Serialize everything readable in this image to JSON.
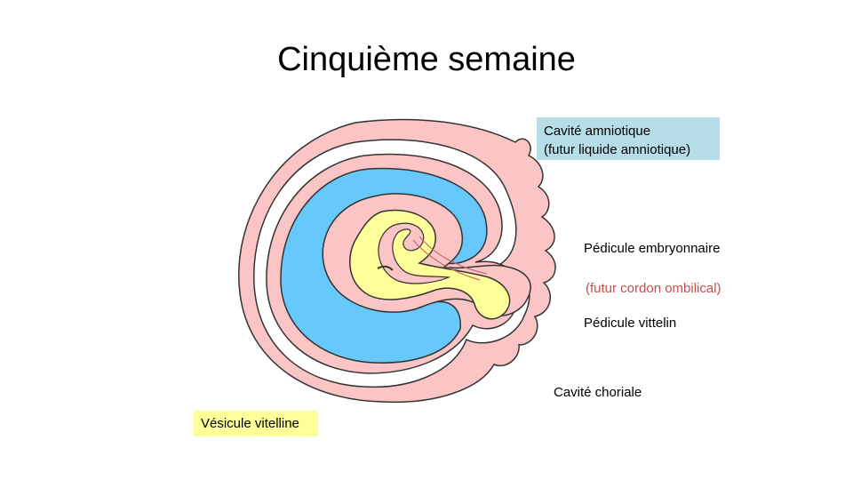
{
  "slide": {
    "title": "Cinquième semaine"
  },
  "labels": {
    "amniotic_line1": "Cavité amniotique",
    "amniotic_line2": "(futur liquide amniotique)",
    "embryonic_stalk": "Pédicule embryonnaire",
    "umbilical_cord": "(futur cordon ombilical)",
    "vitelline_stalk": "Pédicule vittelin",
    "chorionic_cavity": "Cavité choriale",
    "yolk_sac": "Vésicule vitelline"
  },
  "colors": {
    "amniotic_box": "#b7dde8",
    "yolk_box": "#ffff99",
    "umbilical_text": "#c0504d",
    "trophoblast_pink": "#fbc5c5",
    "amniotic_blue": "#66c8fb",
    "yolk_yellow": "#ffff99"
  }
}
